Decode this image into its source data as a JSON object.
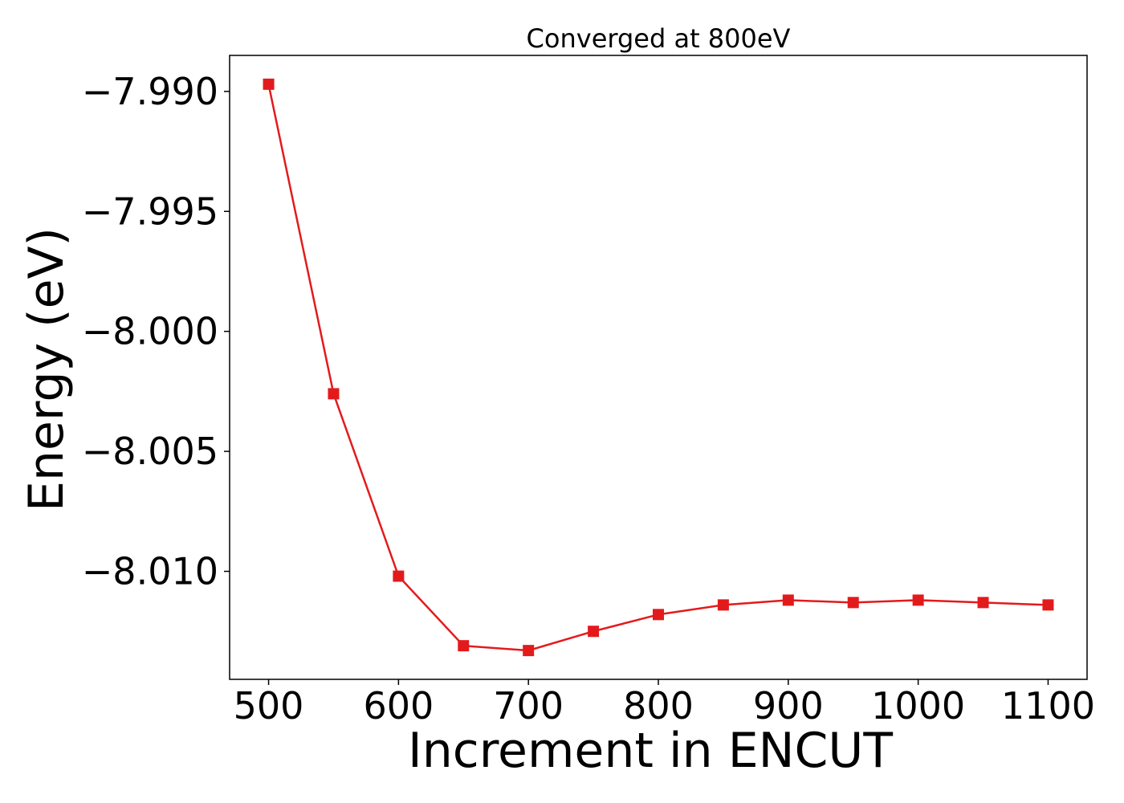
{
  "chart_data": {
    "type": "line",
    "title": "Converged at 800eV",
    "xlabel": "Increment in ENCUT",
    "ylabel": "Energy (eV)",
    "x": [
      500,
      550,
      600,
      650,
      700,
      750,
      800,
      850,
      900,
      950,
      1000,
      1050,
      1100
    ],
    "series": [
      {
        "values": [
          -7.9897,
          -8.0026,
          -8.0102,
          -8.0131,
          -8.0133,
          -8.0125,
          -8.0118,
          -8.0114,
          -8.0112,
          -8.0113,
          -8.0112,
          -8.0113,
          -8.0114
        ],
        "color": "#e31a1c",
        "marker": "square"
      }
    ],
    "xticks": [
      500,
      600,
      700,
      800,
      900,
      1000,
      1100
    ],
    "xtick_labels": [
      "500",
      "600",
      "700",
      "800",
      "900",
      "1000",
      "1100"
    ],
    "yticks": [
      -7.99,
      -7.995,
      -8.0,
      -8.005,
      -8.01
    ],
    "ytick_labels": [
      "−7.990",
      "−7.995",
      "−8.000",
      "−8.005",
      "−8.010"
    ],
    "xlim": [
      470,
      1130
    ],
    "ylim": [
      -8.0145,
      -7.9885
    ],
    "grid": false,
    "legend": "none"
  }
}
